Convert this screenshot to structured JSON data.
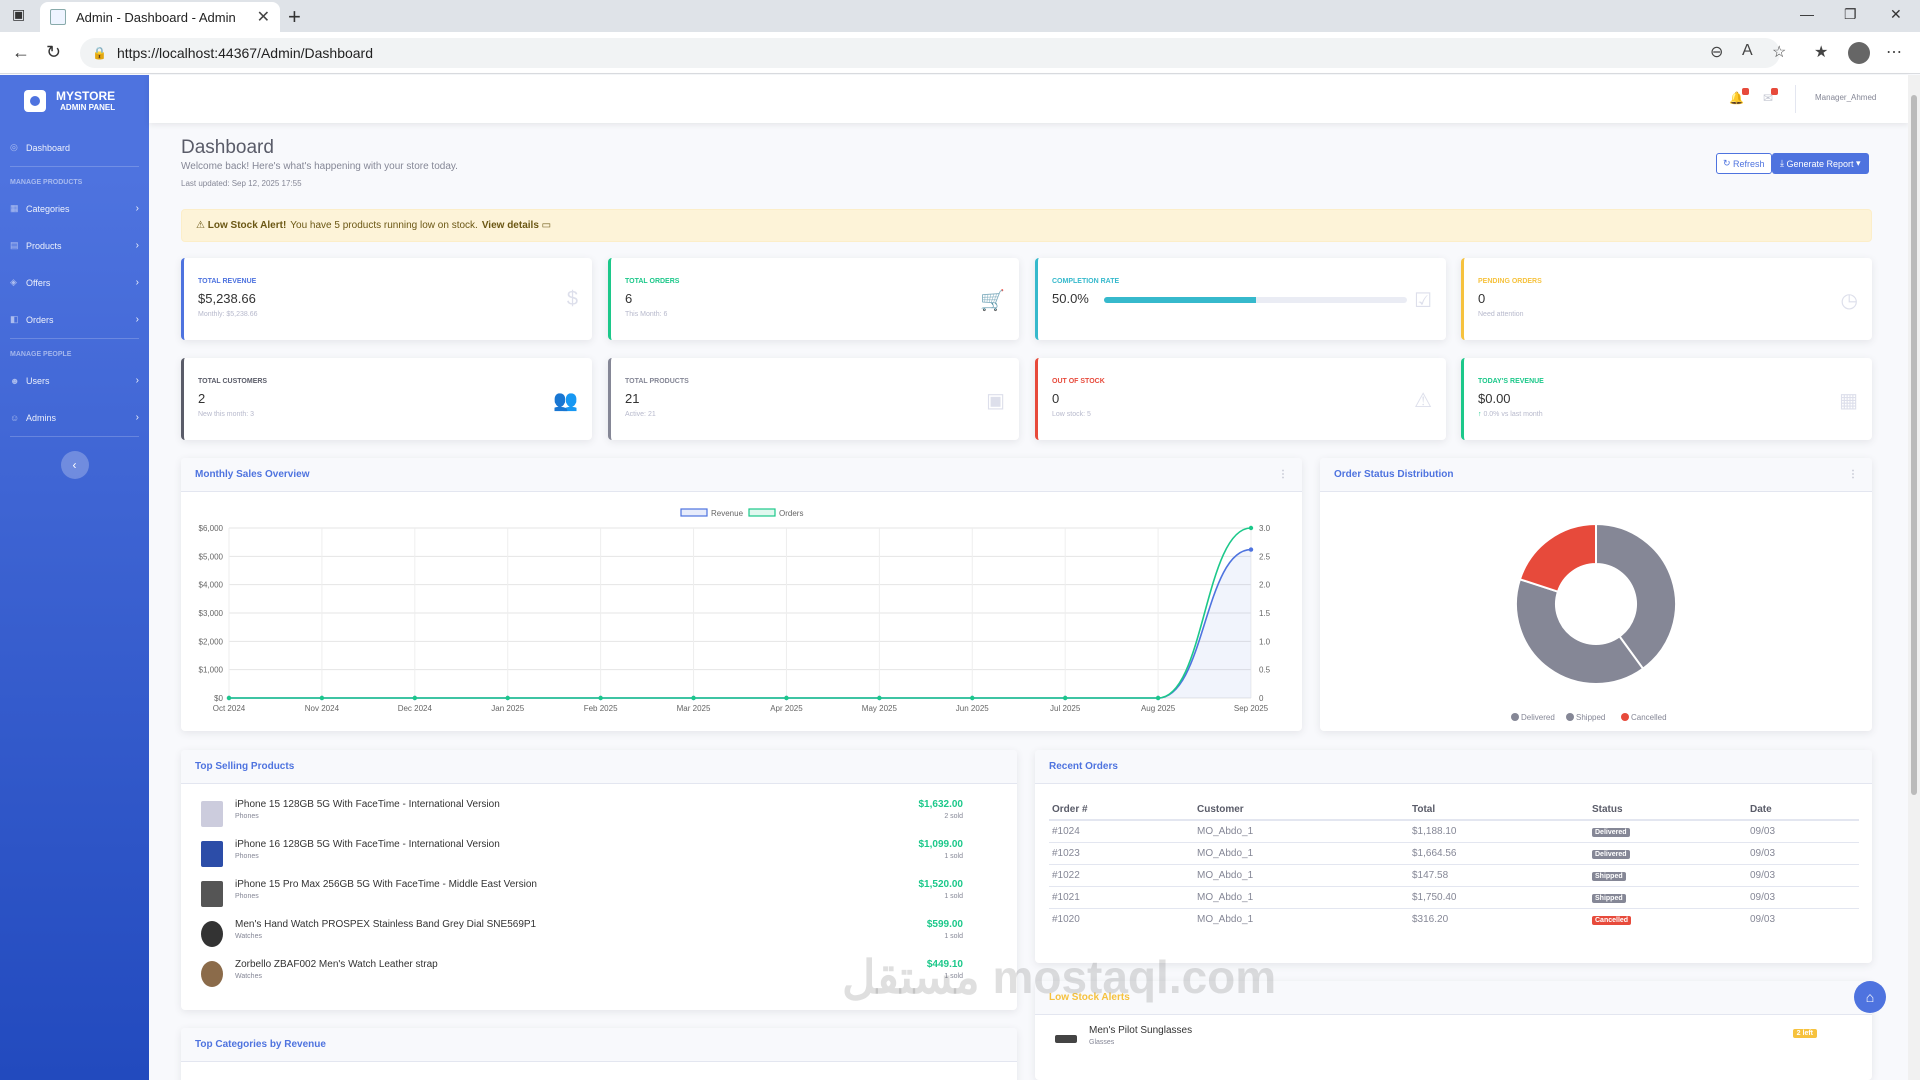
{
  "browser": {
    "tab_title": "Admin - Dashboard - Admin",
    "url": "https://localhost:44367/Admin/Dashboard"
  },
  "sidebar": {
    "brand_title": "MYSTORE",
    "brand_sub": "ADMIN PANEL",
    "dashboard": "Dashboard",
    "heading_products": "MANAGE PRODUCTS",
    "categories": "Categories",
    "products": "Products",
    "offers": "Offers",
    "orders": "Orders",
    "heading_people": "MANAGE PEOPLE",
    "users": "Users",
    "admins": "Admins"
  },
  "topbar": {
    "user": "Manager_Ahmed"
  },
  "header": {
    "title": "Dashboard",
    "welcome": "Welcome back! Here's what's happening with your store today.",
    "updated": "Last updated: Sep 12, 2025 17:55",
    "refresh": "Refresh",
    "generate": "Generate Report"
  },
  "alert": {
    "strong": "Low Stock Alert!",
    "text": "You have 5 products running low on stock.",
    "link": "View details"
  },
  "stats": [
    {
      "label": "TOTAL REVENUE",
      "value": "$5,238.66",
      "sub": "Monthly: $5,238.66",
      "color": "#4e73df"
    },
    {
      "label": "TOTAL ORDERS",
      "value": "6",
      "sub": "This Month: 6",
      "color": "#1cc88a"
    },
    {
      "label": "COMPLETION RATE",
      "value": "50.0%",
      "sub": "",
      "color": "#36b9cc",
      "progress": 0.5
    },
    {
      "label": "PENDING ORDERS",
      "value": "0",
      "sub": "Need attention",
      "color": "#f6c23e"
    },
    {
      "label": "TOTAL CUSTOMERS",
      "value": "2",
      "sub": "New this month: 3",
      "color": "#5a5c69"
    },
    {
      "label": "TOTAL PRODUCTS",
      "value": "21",
      "sub": "Active: 21",
      "color": "#858796"
    },
    {
      "label": "OUT OF STOCK",
      "value": "0",
      "sub": "Low stock: 5",
      "color": "#e74a3b"
    },
    {
      "label": "TODAY'S REVENUE",
      "value": "$0.00",
      "sub": "0.0% vs last month",
      "color": "#1cc88a"
    }
  ],
  "sales_card": {
    "title": "Monthly Sales Overview"
  },
  "status_card": {
    "title": "Order Status Distribution"
  },
  "chart_data": [
    {
      "type": "line",
      "x": [
        "Oct 2024",
        "Nov 2024",
        "Dec 2024",
        "Jan 2025",
        "Feb 2025",
        "Mar 2025",
        "Apr 2025",
        "May 2025",
        "Jun 2025",
        "Jul 2025",
        "Aug 2025",
        "Sep 2025"
      ],
      "series": [
        {
          "name": "Revenue",
          "axis": "left",
          "color": "#4e73df",
          "values": [
            0,
            0,
            0,
            0,
            0,
            0,
            0,
            0,
            0,
            0,
            0,
            5238.66
          ]
        },
        {
          "name": "Orders",
          "axis": "right",
          "color": "#1cc88a",
          "values": [
            0,
            0,
            0,
            0,
            0,
            0,
            0,
            0,
            0,
            0,
            0,
            3
          ]
        }
      ],
      "ylim_left": [
        0,
        6000
      ],
      "yticks_left": [
        "$0",
        "$1,000",
        "$2,000",
        "$3,000",
        "$4,000",
        "$5,000",
        "$6,000"
      ],
      "ylim_right": [
        0,
        3
      ],
      "yticks_right": [
        "0",
        "0.5",
        "1.0",
        "1.5",
        "2.0",
        "2.5",
        "3.0"
      ],
      "grid": true,
      "legend": "top-center"
    },
    {
      "type": "pie",
      "style": "doughnut",
      "categories": [
        "Delivered",
        "Shipped",
        "Cancelled"
      ],
      "values": [
        2,
        2,
        1
      ],
      "colors": [
        "#858796",
        "#858796",
        "#e74a3b"
      ],
      "legend": "bottom"
    }
  ],
  "top_products": {
    "title": "Top Selling Products",
    "items": [
      {
        "name": "iPhone 15 128GB 5G With FaceTime - International Version",
        "cat": "Phones",
        "price": "$1,632.00",
        "sold": "2 sold"
      },
      {
        "name": "iPhone 16 128GB 5G With FaceTime - International Version",
        "cat": "Phones",
        "price": "$1,099.00",
        "sold": "1 sold"
      },
      {
        "name": "iPhone 15 Pro Max 256GB 5G With FaceTime - Middle East Version",
        "cat": "Phones",
        "price": "$1,520.00",
        "sold": "1 sold"
      },
      {
        "name": "Men's Hand Watch PROSPEX Stainless Band Grey Dial SNE569P1",
        "cat": "Watches",
        "price": "$599.00",
        "sold": "1 sold"
      },
      {
        "name": "Zorbello ZBAF002 Men's Watch Leather strap",
        "cat": "Watches",
        "price": "$449.10",
        "sold": "1 sold"
      }
    ]
  },
  "recent_orders": {
    "title": "Recent Orders",
    "headers": [
      "Order #",
      "Customer",
      "Total",
      "Status",
      "Date"
    ],
    "rows": [
      {
        "id": "#1024",
        "customer": "MO_Abdo_1",
        "total": "$1,188.10",
        "status": "Delivered",
        "date": "09/03"
      },
      {
        "id": "#1023",
        "customer": "MO_Abdo_1",
        "total": "$1,664.56",
        "status": "Delivered",
        "date": "09/03"
      },
      {
        "id": "#1022",
        "customer": "MO_Abdo_1",
        "total": "$147.58",
        "status": "Shipped",
        "date": "09/03"
      },
      {
        "id": "#1021",
        "customer": "MO_Abdo_1",
        "total": "$1,750.40",
        "status": "Shipped",
        "date": "09/03"
      },
      {
        "id": "#1020",
        "customer": "MO_Abdo_1",
        "total": "$316.20",
        "status": "Cancelled",
        "date": "09/03"
      }
    ]
  },
  "low_stock": {
    "title": "Low Stock Alerts",
    "item_name": "Men's Pilot Sunglasses",
    "item_cat": "Glasses",
    "badge": "2 left"
  },
  "top_categories": {
    "title": "Top Categories by Revenue"
  },
  "watermark": "مستقل mostaql.com"
}
